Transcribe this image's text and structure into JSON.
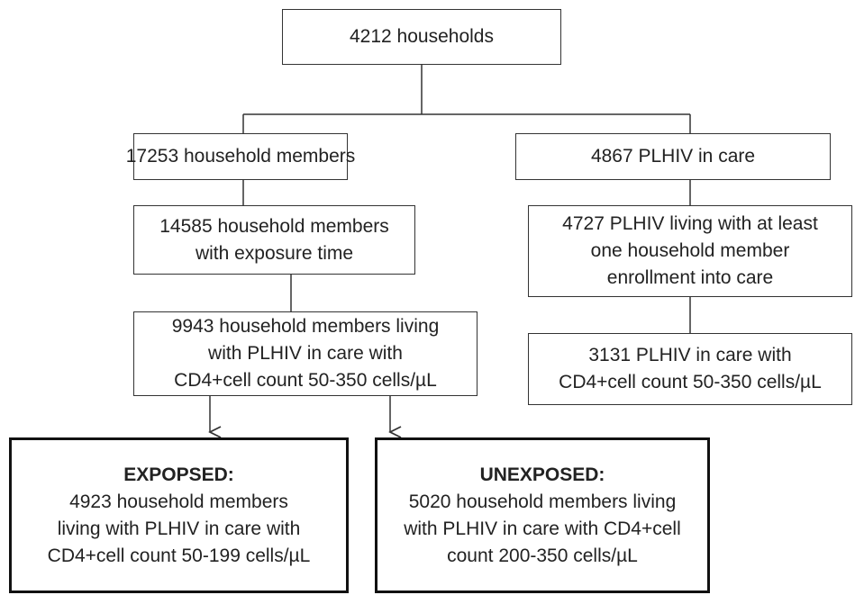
{
  "nodes": [
    {
      "lines": [
        "4212 households"
      ]
    },
    {
      "lines": [
        "17253 household members"
      ]
    },
    {
      "lines": [
        "4867 PLHIV in care"
      ]
    },
    {
      "lines": [
        "14585 household members",
        "with exposure time"
      ]
    },
    {
      "lines": [
        "4727 PLHIV living with at least",
        "one household member",
        "enrollment into care"
      ]
    },
    {
      "lines": [
        "9943 household members living",
        "with PLHIV in care with",
        "CD4+cell count 50-350 cells/µL"
      ]
    },
    {
      "lines": [
        "3131 PLHIV in care with",
        "CD4+cell count 50-350 cells/µL"
      ]
    },
    {
      "title": "EXPOPSED:",
      "lines": [
        "4923 household members",
        "living with PLHIV in care with",
        "CD4+cell count 50-199 cells/µL"
      ]
    },
    {
      "title": "UNEXPOSED:",
      "lines": [
        "5020 household members living",
        "with PLHIV in care with CD4+cell",
        "count 200-350 cells/µL"
      ]
    }
  ]
}
